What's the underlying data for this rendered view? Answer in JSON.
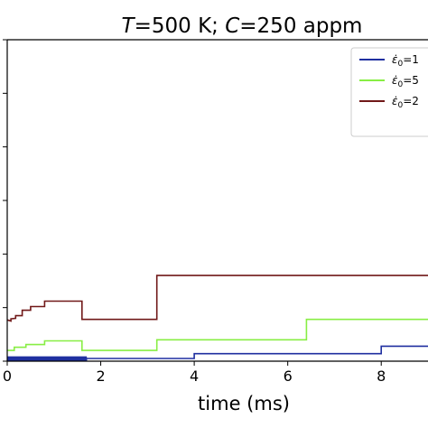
{
  "chart_data": {
    "type": "line",
    "title": {
      "T_symbol": "T",
      "T_value": "=500 K; ",
      "C_symbol": "C",
      "C_value": "=250 appm"
    },
    "xlabel": "time (ms)",
    "ylabel": "",
    "xlim": [
      0,
      9
    ],
    "ylim": [
      0,
      6
    ],
    "xticks": [
      0,
      2,
      4,
      6,
      8
    ],
    "xtick_labels": [
      "0",
      "2",
      "4",
      "6",
      "8"
    ],
    "yticks": [
      0,
      1,
      2,
      3,
      4,
      5,
      6
    ],
    "grid": false,
    "legend": {
      "location": "top-right",
      "entries": [
        {
          "symbol": "ε̇",
          "sub": "0",
          "text": "=1"
        },
        {
          "symbol": "ε̇",
          "sub": "0",
          "text": "=5"
        },
        {
          "symbol": "ε̇",
          "sub": "0",
          "text": "=2"
        }
      ]
    },
    "series": [
      {
        "color": "#1f2fa0",
        "x": [
          0,
          0.02,
          0.02,
          1.7,
          1.7,
          4.0,
          4.0,
          8.0,
          8.0,
          9.0
        ],
        "y": [
          0.05,
          0.05,
          0.05,
          0.05,
          0.05,
          0.05,
          0.14,
          0.14,
          0.28,
          0.28
        ],
        "noisy_segment": {
          "x_range": [
            0,
            1.7
          ],
          "y_range": [
            0.01,
            0.09
          ],
          "step": 0.01
        }
      },
      {
        "color": "#88ee44",
        "x": [
          0,
          0.15,
          0.15,
          0.4,
          0.4,
          0.8,
          0.8,
          1.6,
          1.6,
          3.2,
          3.2,
          6.4,
          6.4,
          9.0
        ],
        "y": [
          0.2,
          0.2,
          0.26,
          0.26,
          0.31,
          0.31,
          0.38,
          0.38,
          0.2,
          0.2,
          0.4,
          0.4,
          0.78,
          0.78
        ]
      },
      {
        "color": "#701818",
        "x": [
          0,
          0.08,
          0.08,
          0.18,
          0.18,
          0.32,
          0.32,
          0.5,
          0.5,
          0.8,
          0.8,
          1.6,
          1.6,
          3.2,
          3.2,
          9.0
        ],
        "y": [
          0.77,
          0.75,
          0.79,
          0.8,
          0.85,
          0.85,
          0.95,
          0.95,
          1.02,
          1.02,
          1.12,
          1.12,
          0.78,
          0.78,
          1.6,
          1.6
        ]
      }
    ]
  }
}
